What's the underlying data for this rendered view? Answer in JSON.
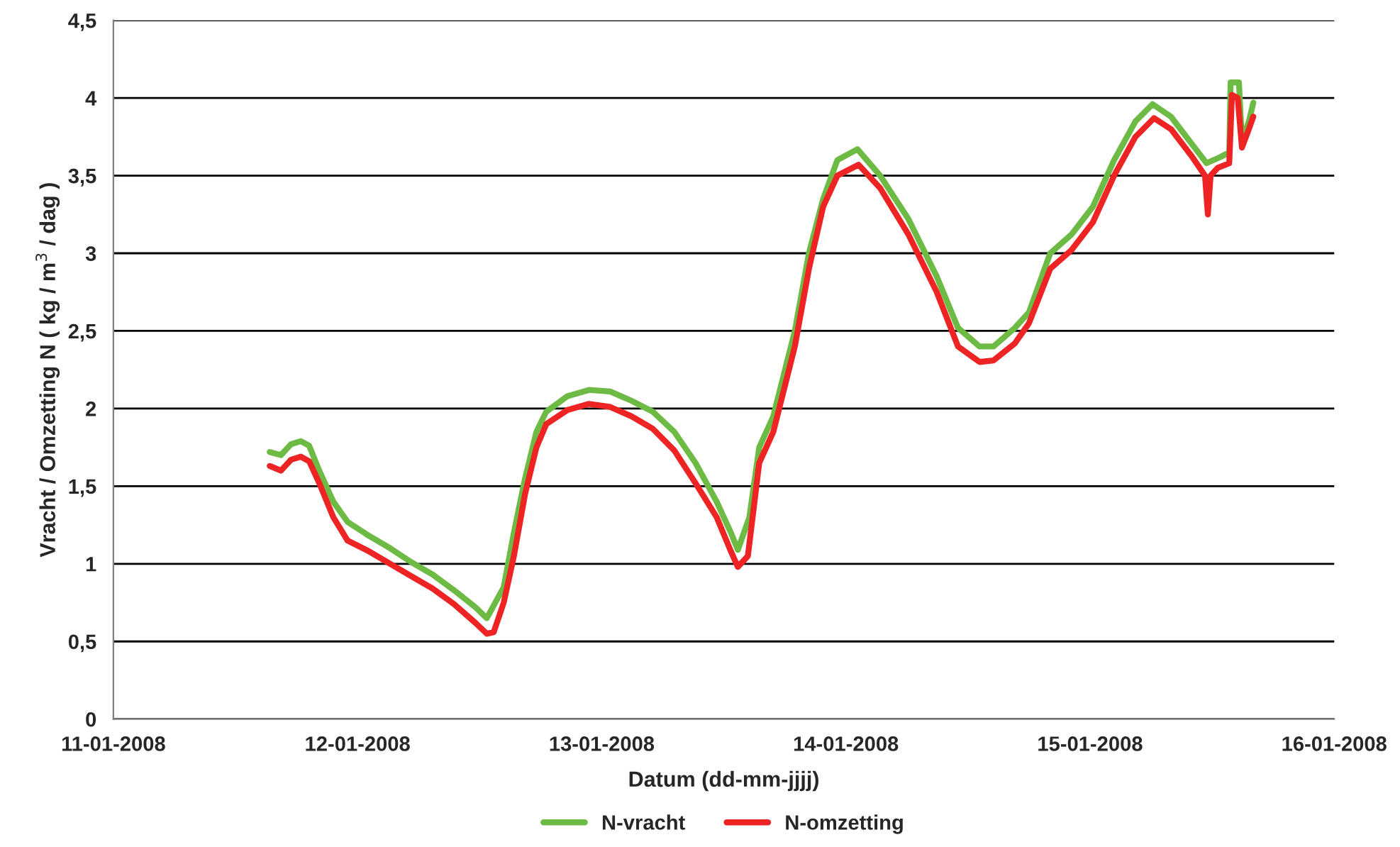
{
  "chart_data": {
    "type": "line",
    "xlabel": "Datum (dd-mm-jjjj)",
    "ylabel": "Vracht / Omzetting N ( kg / m$^{3}$ / dag )",
    "xlim": [
      "2008-01-11",
      "2008-01-16"
    ],
    "xticks": [
      {
        "value": "2008-01-11",
        "label": "11-01-2008"
      },
      {
        "value": "2008-01-12",
        "label": "12-01-2008"
      },
      {
        "value": "2008-01-13",
        "label": "13-01-2008"
      },
      {
        "value": "2008-01-14",
        "label": "14-01-2008"
      },
      {
        "value": "2008-01-15",
        "label": "15-01-2008"
      },
      {
        "value": "2008-01-16",
        "label": "16-01-2008"
      }
    ],
    "ylim": [
      0,
      4.5
    ],
    "yticks": [
      {
        "value": 0,
        "label": "0"
      },
      {
        "value": 0.5,
        "label": "0,5"
      },
      {
        "value": 1,
        "label": "1"
      },
      {
        "value": 1.5,
        "label": "1,5"
      },
      {
        "value": 2,
        "label": "2"
      },
      {
        "value": 2.5,
        "label": "2,5"
      },
      {
        "value": 3,
        "label": "3"
      },
      {
        "value": 3.5,
        "label": "3,5"
      },
      {
        "value": 4,
        "label": "4"
      },
      {
        "value": 4.5,
        "label": "4,5"
      }
    ],
    "grid": "y",
    "legend": "bottom",
    "marker": "none",
    "line_style": "solid",
    "series": [
      {
        "name": "N-vracht",
        "color": "#6dbb45",
        "x": [
          "2008-01-11T15:22",
          "2008-01-11T16:28",
          "2008-01-11T17:27",
          "2008-01-11T18:25",
          "2008-01-11T19:15",
          "2008-01-11T20:14",
          "2008-01-11T21:37",
          "2008-01-11T23:01",
          "2008-01-12T01:08",
          "2008-01-12T03:13",
          "2008-01-12T05:18",
          "2008-01-12T07:24",
          "2008-01-12T09:29",
          "2008-01-12T11:35",
          "2008-01-12T12:42",
          "2008-01-12T14:22",
          "2008-01-12T15:22",
          "2008-01-12T16:28",
          "2008-01-12T17:35",
          "2008-01-12T18:33",
          "2008-01-12T20:38",
          "2008-01-12T22:45",
          "2008-01-13T00:50",
          "2008-01-13T02:56",
          "2008-01-13T05:01",
          "2008-01-13T07:08",
          "2008-01-13T09:13",
          "2008-01-13T11:18",
          "2008-01-13T12:42",
          "2008-01-13T13:23",
          "2008-01-13T14:31",
          "2008-01-13T15:29",
          "2008-01-13T16:52",
          "2008-01-13T18:59",
          "2008-01-13T20:22",
          "2008-01-13T21:46",
          "2008-01-13T23:10",
          "2008-01-14T01:08",
          "2008-01-14T03:22",
          "2008-01-14T06:09",
          "2008-01-14T08:56",
          "2008-01-14T11:01",
          "2008-01-14T13:08",
          "2008-01-14T14:31",
          "2008-01-14T16:37",
          "2008-01-14T18:00",
          "2008-01-14T20:05",
          "2008-01-14T22:10",
          "2008-01-15T00:17",
          "2008-01-15T02:22",
          "2008-01-15T04:28",
          "2008-01-15T06:09",
          "2008-01-15T07:57",
          "2008-01-15T10:03",
          "2008-01-15T11:27",
          "2008-01-15T12:50",
          "2008-01-15T13:41",
          "2008-01-15T13:49",
          "2008-01-15T14:38",
          "2008-01-15T14:56",
          "2008-01-15T15:37",
          "2008-01-15T16:03"
        ],
        "values": [
          1.72,
          1.7,
          1.77,
          1.79,
          1.76,
          1.6,
          1.4,
          1.27,
          1.18,
          1.1,
          1.01,
          0.93,
          0.83,
          0.72,
          0.65,
          0.85,
          1.2,
          1.55,
          1.85,
          1.98,
          2.08,
          2.12,
          2.11,
          2.05,
          1.98,
          1.85,
          1.65,
          1.4,
          1.2,
          1.09,
          1.3,
          1.75,
          1.95,
          2.5,
          3.0,
          3.35,
          3.6,
          3.67,
          3.5,
          3.22,
          2.85,
          2.52,
          2.4,
          2.4,
          2.52,
          2.62,
          3.0,
          3.12,
          3.3,
          3.6,
          3.85,
          3.96,
          3.88,
          3.7,
          3.58,
          3.62,
          3.65,
          4.1,
          4.1,
          3.72,
          3.85,
          3.97
        ]
      },
      {
        "name": "N-omzetting",
        "color": "#ee2424",
        "x": [
          "2008-01-11T15:22",
          "2008-01-11T16:28",
          "2008-01-11T17:27",
          "2008-01-11T18:25",
          "2008-01-11T19:15",
          "2008-01-11T20:14",
          "2008-01-11T21:37",
          "2008-01-11T23:01",
          "2008-01-12T01:08",
          "2008-01-12T03:13",
          "2008-01-12T05:18",
          "2008-01-12T07:24",
          "2008-01-12T09:29",
          "2008-01-12T11:35",
          "2008-01-12T12:42",
          "2008-01-12T13:23",
          "2008-01-12T14:22",
          "2008-01-12T15:22",
          "2008-01-12T16:28",
          "2008-01-12T17:35",
          "2008-01-12T18:33",
          "2008-01-12T20:38",
          "2008-01-12T22:45",
          "2008-01-13T00:50",
          "2008-01-13T02:56",
          "2008-01-13T05:01",
          "2008-01-13T07:08",
          "2008-01-13T09:13",
          "2008-01-13T11:18",
          "2008-01-13T12:42",
          "2008-01-13T13:23",
          "2008-01-13T14:22",
          "2008-01-13T15:29",
          "2008-01-13T16:52",
          "2008-01-13T18:59",
          "2008-01-13T20:22",
          "2008-01-13T21:46",
          "2008-01-13T23:10",
          "2008-01-14T01:15",
          "2008-01-14T03:22",
          "2008-01-14T06:09",
          "2008-01-14T08:56",
          "2008-01-14T11:01",
          "2008-01-14T13:08",
          "2008-01-14T14:31",
          "2008-01-14T16:37",
          "2008-01-14T18:00",
          "2008-01-14T20:05",
          "2008-01-14T22:10",
          "2008-01-15T00:17",
          "2008-01-15T02:22",
          "2008-01-15T04:28",
          "2008-01-15T06:17",
          "2008-01-15T07:57",
          "2008-01-15T10:03",
          "2008-01-15T11:18",
          "2008-01-15T11:35",
          "2008-01-15T11:51",
          "2008-01-15T12:33",
          "2008-01-15T13:41",
          "2008-01-15T13:57",
          "2008-01-15T14:31",
          "2008-01-15T14:56",
          "2008-01-15T15:37",
          "2008-01-15T16:03"
        ],
        "values": [
          1.63,
          1.6,
          1.67,
          1.69,
          1.66,
          1.52,
          1.3,
          1.15,
          1.08,
          1.0,
          0.92,
          0.84,
          0.74,
          0.62,
          0.55,
          0.56,
          0.75,
          1.05,
          1.45,
          1.75,
          1.9,
          1.99,
          2.03,
          2.01,
          1.95,
          1.87,
          1.73,
          1.52,
          1.3,
          1.08,
          0.98,
          1.05,
          1.65,
          1.85,
          2.4,
          2.9,
          3.3,
          3.5,
          3.57,
          3.42,
          3.12,
          2.75,
          2.4,
          2.3,
          2.31,
          2.42,
          2.55,
          2.9,
          3.02,
          3.2,
          3.5,
          3.75,
          3.87,
          3.8,
          3.62,
          3.5,
          3.25,
          3.5,
          3.55,
          3.58,
          4.02,
          4.0,
          3.68,
          3.8,
          3.88
        ]
      }
    ]
  }
}
